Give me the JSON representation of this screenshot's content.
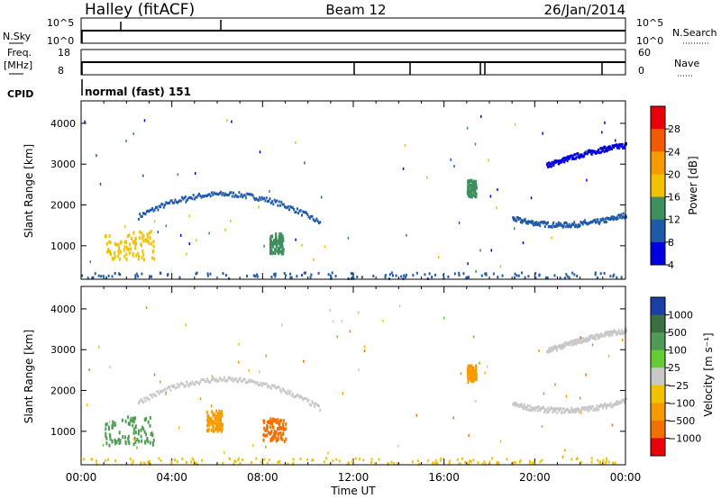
{
  "header": {
    "title": "Halley (fitACF)",
    "beam": "Beam 12",
    "date": "26/Jan/2014"
  },
  "sky_panel": {
    "left_label": "N.Sky",
    "left_ticks": [
      "10^5",
      "10^0"
    ],
    "right_label": "N.Search",
    "right_ticks": [
      "10^5",
      "10^0"
    ]
  },
  "freq_panel": {
    "left_label_1": "Freq.",
    "left_label_2": "[MHz]",
    "left_ticks": [
      "18",
      "8"
    ],
    "right_label": "Nave",
    "right_ticks": [
      "60",
      "0"
    ]
  },
  "cpid": {
    "label": "CPID",
    "value": "normal (fast) 151"
  },
  "colorbars": {
    "power": {
      "label": "Power [dB]",
      "ticks": [
        "28",
        "24",
        "20",
        "16",
        "12",
        "8",
        "4"
      ],
      "colors": [
        "#e8000b",
        "#f05a00",
        "#f59b00",
        "#f2c200",
        "#3f8e5e",
        "#1f5aa8",
        "#0000e0"
      ]
    },
    "velocity": {
      "label": "Velocity [m s⁻¹]",
      "ticks": [
        "1000",
        "500",
        "100",
        "25",
        "−25",
        "−100",
        "−500",
        "−1000"
      ],
      "colors": [
        "#1a3fa8",
        "#3a6f3f",
        "#4f9a55",
        "#66cc33",
        "#c8c8c8",
        "#f2c200",
        "#f59b00",
        "#f07000",
        "#e8000b"
      ]
    }
  },
  "chart_data": [
    {
      "type": "heatmap",
      "name": "power",
      "ylabel": "Slant Range [km]",
      "ylim": [
        180,
        4550
      ],
      "yticks": [
        1000,
        2000,
        3000,
        4000
      ],
      "xlim": [
        0,
        24
      ],
      "features": [
        {
          "shape": "band",
          "t_start": 2.5,
          "t_end": 10.5,
          "range_start": 1700,
          "range_peak": 2250,
          "range_end": 1550,
          "power_db": 10
        },
        {
          "shape": "band",
          "t_start": 19.0,
          "t_end": 24.0,
          "range_start": 1650,
          "range_peak": 1500,
          "range_end": 1750,
          "power_db": 10
        },
        {
          "shape": "band",
          "t_start": 20.5,
          "t_end": 24.0,
          "range_start": 2950,
          "range_peak": 3250,
          "range_end": 3450,
          "power_db": 8
        },
        {
          "shape": "blob",
          "t_start": 1.0,
          "t_end": 3.2,
          "range_start": 650,
          "range_end": 1350,
          "power_db": 20
        },
        {
          "shape": "blob",
          "t_start": 17.0,
          "t_end": 17.4,
          "range_start": 2200,
          "range_end": 2600,
          "power_db": 14
        },
        {
          "shape": "blob",
          "t_start": 8.3,
          "t_end": 8.9,
          "range_start": 800,
          "range_end": 1300,
          "power_db": 16
        },
        {
          "shape": "floor",
          "t_start": 0.0,
          "t_end": 24.0,
          "range_start": 200,
          "range_end": 350,
          "power_db": 12
        }
      ]
    },
    {
      "type": "heatmap",
      "name": "velocity",
      "ylabel": "Slant Range [km]",
      "xlabel": "Time UT",
      "ylim": [
        180,
        4550
      ],
      "yticks": [
        1000,
        2000,
        3000,
        4000
      ],
      "xlim": [
        0,
        24
      ],
      "xticks": [
        "00:00",
        "04:00",
        "08:00",
        "12:00",
        "16:00",
        "20:00",
        "00:00"
      ],
      "features": [
        {
          "shape": "band",
          "t_start": 2.5,
          "t_end": 10.5,
          "range_start": 1700,
          "range_peak": 2250,
          "range_end": 1550,
          "velocity": 0
        },
        {
          "shape": "band",
          "t_start": 19.0,
          "t_end": 24.0,
          "range_start": 1650,
          "range_peak": 1500,
          "range_end": 1750,
          "velocity": 0
        },
        {
          "shape": "band",
          "t_start": 20.5,
          "t_end": 24.0,
          "range_start": 2950,
          "range_peak": 3250,
          "range_end": 3450,
          "velocity": 0
        },
        {
          "shape": "blob",
          "t_start": 1.0,
          "t_end": 3.2,
          "range_start": 650,
          "range_end": 1350,
          "velocity": 200
        },
        {
          "shape": "blob",
          "t_start": 17.0,
          "t_end": 17.4,
          "range_start": 2200,
          "range_end": 2600,
          "velocity": -300
        },
        {
          "shape": "blob",
          "t_start": 8.0,
          "t_end": 9.0,
          "range_start": 750,
          "range_end": 1300,
          "velocity": -800
        },
        {
          "shape": "blob",
          "t_start": 5.5,
          "t_end": 6.2,
          "range_start": 1000,
          "range_end": 1500,
          "velocity": -300
        },
        {
          "shape": "floor",
          "t_start": 0.0,
          "t_end": 24.0,
          "range_start": 200,
          "range_end": 350,
          "velocity": -50
        }
      ]
    }
  ]
}
